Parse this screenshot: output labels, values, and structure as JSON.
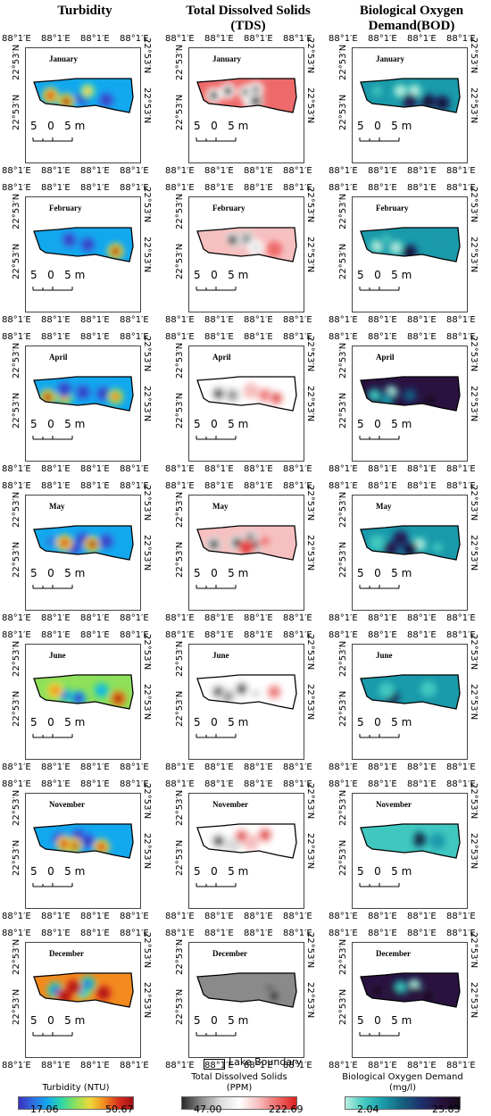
{
  "columns": [
    {
      "id": "turbidity",
      "title": "Turbidity",
      "colormap": [
        "#3b2fbf",
        "#2f6fe0",
        "#12a8ee",
        "#2fd7a6",
        "#8fe05a",
        "#f0d83a",
        "#f28a1e",
        "#d7301f",
        "#a50f15"
      ]
    },
    {
      "id": "tds",
      "title": "Total Dissolved Solids (TDS)",
      "colormap": [
        "#2a2a2a",
        "#8a8a8a",
        "#dcdcdc",
        "#ffffff",
        "#f7c0c0",
        "#ee6a6a",
        "#e02020"
      ]
    },
    {
      "id": "bod",
      "title": "Biological Oxygen Demand(BOD)",
      "colormap": [
        "#b8f0e0",
        "#40c8c0",
        "#1a9aaa",
        "#16607e",
        "#1d2f6b",
        "#2a1240",
        "#150a18"
      ]
    }
  ],
  "months": [
    "January",
    "February",
    "April",
    "May",
    "June",
    "November",
    "December"
  ],
  "axis": {
    "lon_tick": "88°1′E",
    "lat_tick": "22°53′N"
  },
  "scale_bar": {
    "label": "5   0   5 m"
  },
  "legend": {
    "lake_boundary": "Lake Boundary"
  },
  "colorbars": [
    {
      "title": "Turbidity (NTU)",
      "min": "17.06",
      "max": "50.67"
    },
    {
      "title": "Total Dissolved Solids\n(PPM)",
      "min": "47.00",
      "max": "222.69"
    },
    {
      "title": "Biological Oxygen Demand\n(mg/l)",
      "min": "2.04",
      "max": "25.83"
    }
  ],
  "hotspots": {
    "turbidity": [
      {
        "bg": 0.25,
        "spots": [
          [
            0.15,
            0.5,
            0.9
          ],
          [
            0.32,
            0.7,
            0.95
          ],
          [
            0.5,
            0.55,
            0.0
          ],
          [
            0.75,
            0.65,
            0.05
          ],
          [
            0.55,
            0.35,
            0.6
          ]
        ]
      },
      {
        "bg": 0.2,
        "spots": [
          [
            0.35,
            0.35,
            0.0
          ],
          [
            0.55,
            0.5,
            0.05
          ],
          [
            0.85,
            0.72,
            0.95
          ],
          [
            0.2,
            0.55,
            0.3
          ]
        ]
      },
      {
        "bg": 0.25,
        "spots": [
          [
            0.12,
            0.62,
            0.95
          ],
          [
            0.3,
            0.6,
            0.75
          ],
          [
            0.5,
            0.45,
            0.0
          ],
          [
            0.72,
            0.5,
            0.05
          ],
          [
            0.85,
            0.6,
            0.8
          ],
          [
            0.3,
            0.35,
            0.05
          ]
        ]
      },
      {
        "bg": 0.3,
        "spots": [
          [
            0.15,
            0.45,
            0.1
          ],
          [
            0.4,
            0.65,
            0.05
          ],
          [
            0.5,
            0.4,
            0.0
          ],
          [
            0.6,
            0.55,
            0.95
          ],
          [
            0.75,
            0.45,
            0.05
          ],
          [
            0.3,
            0.5,
            0.9
          ]
        ]
      },
      {
        "bg": 0.55,
        "spots": [
          [
            0.3,
            0.6,
            0.1
          ],
          [
            0.45,
            0.72,
            0.0
          ],
          [
            0.7,
            0.45,
            0.25
          ],
          [
            0.88,
            0.72,
            0.95
          ],
          [
            0.2,
            0.45,
            0.7
          ]
        ]
      },
      {
        "bg": 0.3,
        "spots": [
          [
            0.25,
            0.45,
            0.05
          ],
          [
            0.45,
            0.35,
            0.0
          ],
          [
            0.55,
            0.5,
            0.05
          ],
          [
            0.4,
            0.65,
            0.95
          ],
          [
            0.7,
            0.7,
            0.9
          ],
          [
            0.3,
            0.6,
            0.85
          ]
        ]
      },
      {
        "bg": 0.75,
        "spots": [
          [
            0.2,
            0.5,
            0.1
          ],
          [
            0.5,
            0.55,
            0.3
          ],
          [
            0.55,
            0.3,
            0.1
          ],
          [
            0.72,
            0.6,
            0.95
          ],
          [
            0.3,
            0.7,
            0.95
          ],
          [
            0.4,
            0.4,
            0.95
          ]
        ]
      }
    ],
    "tds": [
      {
        "bg": 0.8,
        "spots": [
          [
            0.3,
            0.35,
            0.05
          ],
          [
            0.5,
            0.4,
            0.05
          ],
          [
            0.6,
            0.3,
            0.1
          ],
          [
            0.15,
            0.5,
            0.05
          ],
          [
            0.55,
            0.7,
            0.3
          ],
          [
            0.6,
            0.68,
            0.0
          ]
        ]
      },
      {
        "bg": 0.6,
        "spots": [
          [
            0.35,
            0.35,
            0.0
          ],
          [
            0.5,
            0.3,
            0.2
          ],
          [
            0.6,
            0.6,
            0.3
          ],
          [
            0.8,
            0.65,
            0.9
          ],
          [
            0.25,
            0.6,
            0.7
          ]
        ]
      },
      {
        "bg": 0.5,
        "spots": [
          [
            0.2,
            0.5,
            0.05
          ],
          [
            0.35,
            0.55,
            0.1
          ],
          [
            0.55,
            0.4,
            0.7
          ],
          [
            0.82,
            0.65,
            0.95
          ],
          [
            0.7,
            0.55,
            0.85
          ]
        ]
      },
      {
        "bg": 0.6,
        "spots": [
          [
            0.15,
            0.55,
            0.0
          ],
          [
            0.4,
            0.5,
            0.05
          ],
          [
            0.55,
            0.35,
            0.05
          ],
          [
            0.6,
            0.55,
            0.0
          ],
          [
            0.7,
            0.45,
            0.8
          ],
          [
            0.5,
            0.65,
            0.95
          ]
        ]
      },
      {
        "bg": 0.55,
        "spots": [
          [
            0.2,
            0.5,
            0.05
          ],
          [
            0.45,
            0.4,
            0.0
          ],
          [
            0.6,
            0.55,
            0.3
          ],
          [
            0.3,
            0.65,
            0.15
          ],
          [
            0.8,
            0.5,
            0.75
          ]
        ]
      },
      {
        "bg": 0.5,
        "spots": [
          [
            0.2,
            0.5,
            0.05
          ],
          [
            0.45,
            0.35,
            0.95
          ],
          [
            0.7,
            0.3,
            0.95
          ],
          [
            0.55,
            0.55,
            0.7
          ],
          [
            0.35,
            0.65,
            0.3
          ]
        ]
      },
      {
        "bg": 0.2,
        "spots": [
          [
            0.15,
            0.5,
            0.2
          ],
          [
            0.4,
            0.35,
            0.1
          ],
          [
            0.75,
            0.5,
            0.0
          ],
          [
            0.8,
            0.7,
            0.0
          ],
          [
            0.65,
            0.6,
            0.1
          ]
        ]
      }
    ],
    "bod": [
      {
        "bg": 0.4,
        "spots": [
          [
            0.15,
            0.35,
            0.1
          ],
          [
            0.4,
            0.35,
            0.05
          ],
          [
            0.55,
            0.35,
            0.05
          ],
          [
            0.7,
            0.7,
            0.95
          ],
          [
            0.85,
            0.75,
            0.95
          ],
          [
            0.5,
            0.7,
            0.85
          ]
        ]
      },
      {
        "bg": 0.35,
        "spots": [
          [
            0.15,
            0.55,
            0.0
          ],
          [
            0.35,
            0.6,
            0.05
          ],
          [
            0.5,
            0.75,
            0.95
          ],
          [
            0.25,
            0.35,
            0.15
          ],
          [
            0.8,
            0.4,
            0.3
          ]
        ]
      },
      {
        "bg": 0.8,
        "spots": [
          [
            0.12,
            0.55,
            0.1
          ],
          [
            0.3,
            0.45,
            0.05
          ],
          [
            0.5,
            0.55,
            0.5
          ],
          [
            0.72,
            0.7,
            0.95
          ],
          [
            0.25,
            0.7,
            0.25
          ]
        ]
      },
      {
        "bg": 0.35,
        "spots": [
          [
            0.15,
            0.5,
            0.1
          ],
          [
            0.4,
            0.35,
            0.85
          ],
          [
            0.6,
            0.55,
            0.05
          ],
          [
            0.5,
            0.72,
            0.95
          ],
          [
            0.8,
            0.65,
            0.15
          ],
          [
            0.3,
            0.7,
            0.9
          ]
        ]
      },
      {
        "bg": 0.25,
        "spots": [
          [
            0.3,
            0.65,
            0.95
          ],
          [
            0.25,
            0.45,
            0.1
          ],
          [
            0.7,
            0.4,
            0.2
          ]
        ]
      },
      {
        "bg": 0.2,
        "spots": [
          [
            0.6,
            0.45,
            0.95
          ],
          [
            0.45,
            0.4,
            0.1
          ],
          [
            0.3,
            0.55,
            0.15
          ],
          [
            0.8,
            0.5,
            0.3
          ]
        ]
      },
      {
        "bg": 0.85,
        "spots": [
          [
            0.15,
            0.5,
            0.95
          ],
          [
            0.4,
            0.4,
            0.1
          ],
          [
            0.55,
            0.35,
            0.05
          ],
          [
            0.7,
            0.7,
            0.95
          ],
          [
            0.3,
            0.65,
            0.9
          ],
          [
            0.55,
            0.65,
            0.8
          ]
        ]
      }
    ]
  }
}
